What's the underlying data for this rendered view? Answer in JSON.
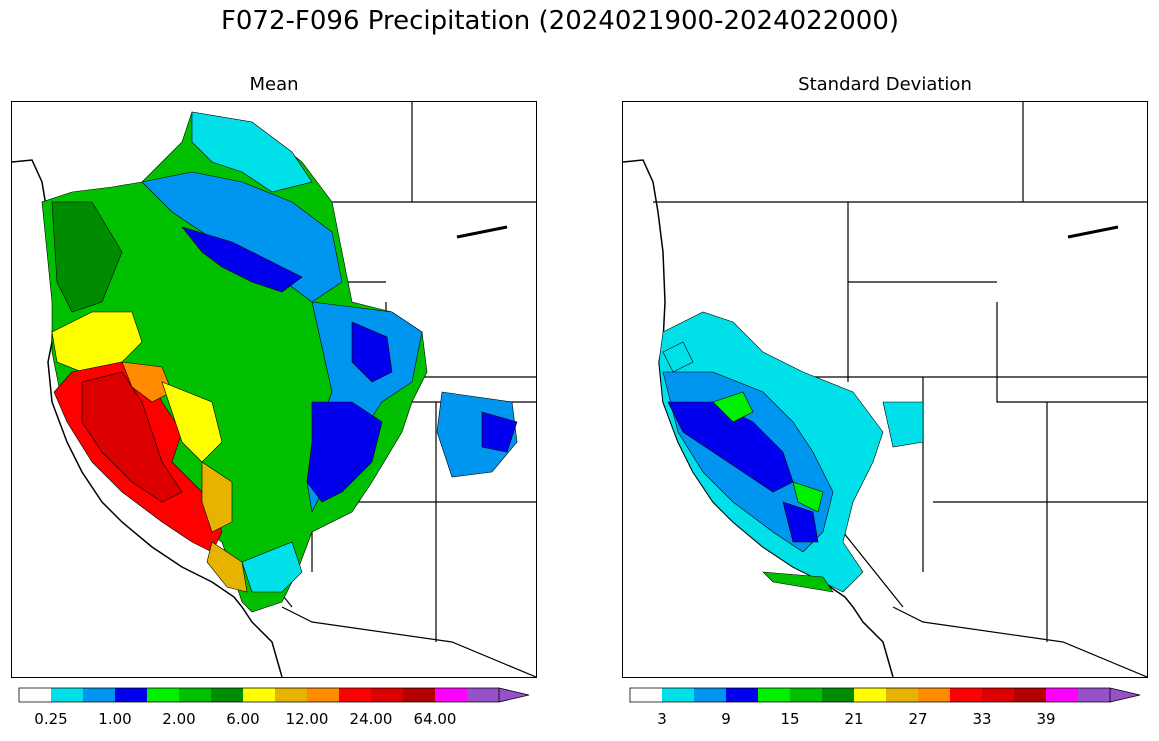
{
  "figure": {
    "title": "F072-F096 Precipitation (2024021900-2024022000)"
  },
  "panels": [
    {
      "id": "mean",
      "title": "Mean"
    },
    {
      "id": "std",
      "title": "Standard Deviation"
    }
  ],
  "colors": {
    "levels": [
      "#ffffff",
      "#00e0e8",
      "#0096f0",
      "#0000ee",
      "#00f000",
      "#00c000",
      "#008c00",
      "#ffff00",
      "#e6b400",
      "#ff8c00",
      "#ff0000",
      "#dc0000",
      "#b40000",
      "#ff00ff",
      "#9650c8"
    ],
    "border": "#000000"
  },
  "colorbars": [
    {
      "panel": "mean",
      "ticks": [
        "0.25",
        "1.00",
        "2.00",
        "6.00",
        "12.00",
        "24.00",
        "64.00"
      ]
    },
    {
      "panel": "std",
      "ticks": [
        "3",
        "9",
        "15",
        "21",
        "27",
        "33",
        "39"
      ]
    }
  ]
}
